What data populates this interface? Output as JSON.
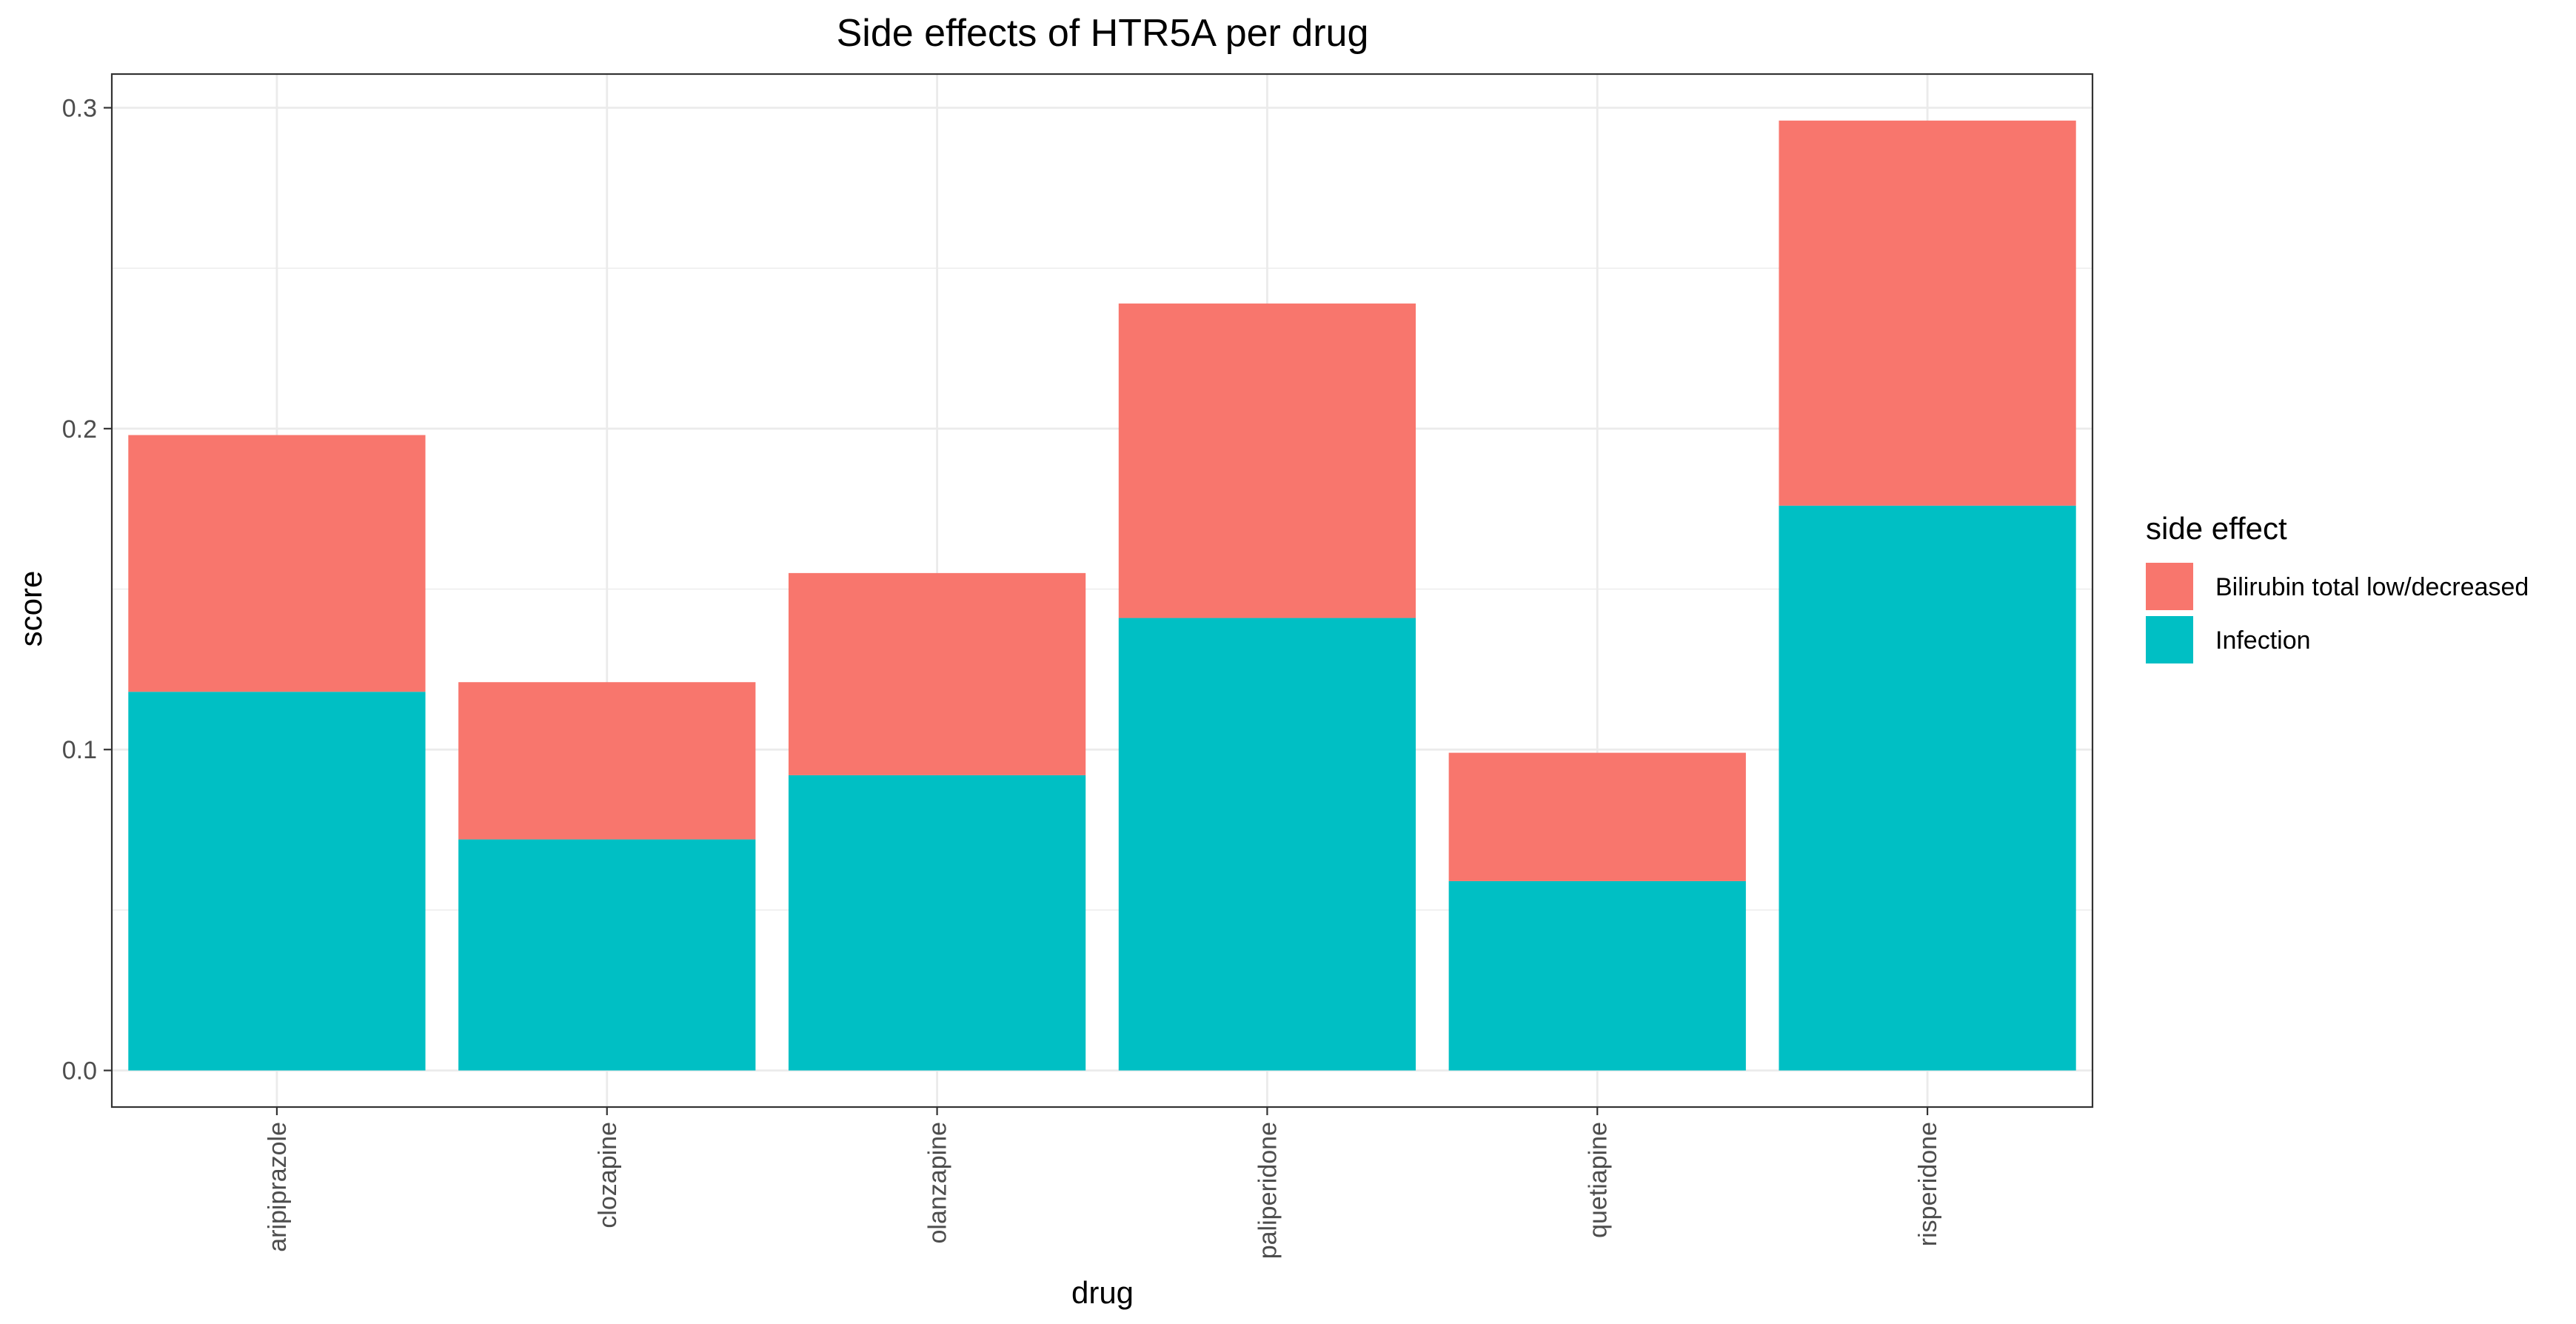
{
  "chart_data": {
    "type": "bar",
    "stacked": true,
    "title": "Side effects of HTR5A per drug",
    "xlabel": "drug",
    "ylabel": "score",
    "categories": [
      "aripiprazole",
      "clozapine",
      "olanzapine",
      "paliperidone",
      "quetiapine",
      "risperidone"
    ],
    "series": [
      {
        "name": "Infection",
        "color": "#00BFC4",
        "values": [
          0.118,
          0.072,
          0.092,
          0.141,
          0.059,
          0.176
        ]
      },
      {
        "name": "Bilirubin total low/decreased",
        "color": "#F8766D",
        "values": [
          0.08,
          0.049,
          0.063,
          0.098,
          0.04,
          0.12
        ]
      }
    ],
    "ylim": [
      -0.0114,
      0.3105
    ],
    "yticks": [
      0.0,
      0.1,
      0.2,
      0.3
    ],
    "ytick_labels": [
      "0.0",
      "0.1",
      "0.2",
      "0.3"
    ],
    "grid": true,
    "legend": {
      "title": "side effect",
      "position": "right",
      "entries": [
        {
          "label": "Bilirubin total low/decreased",
          "color": "#F8766D"
        },
        {
          "label": "Infection",
          "color": "#00BFC4"
        }
      ]
    }
  }
}
